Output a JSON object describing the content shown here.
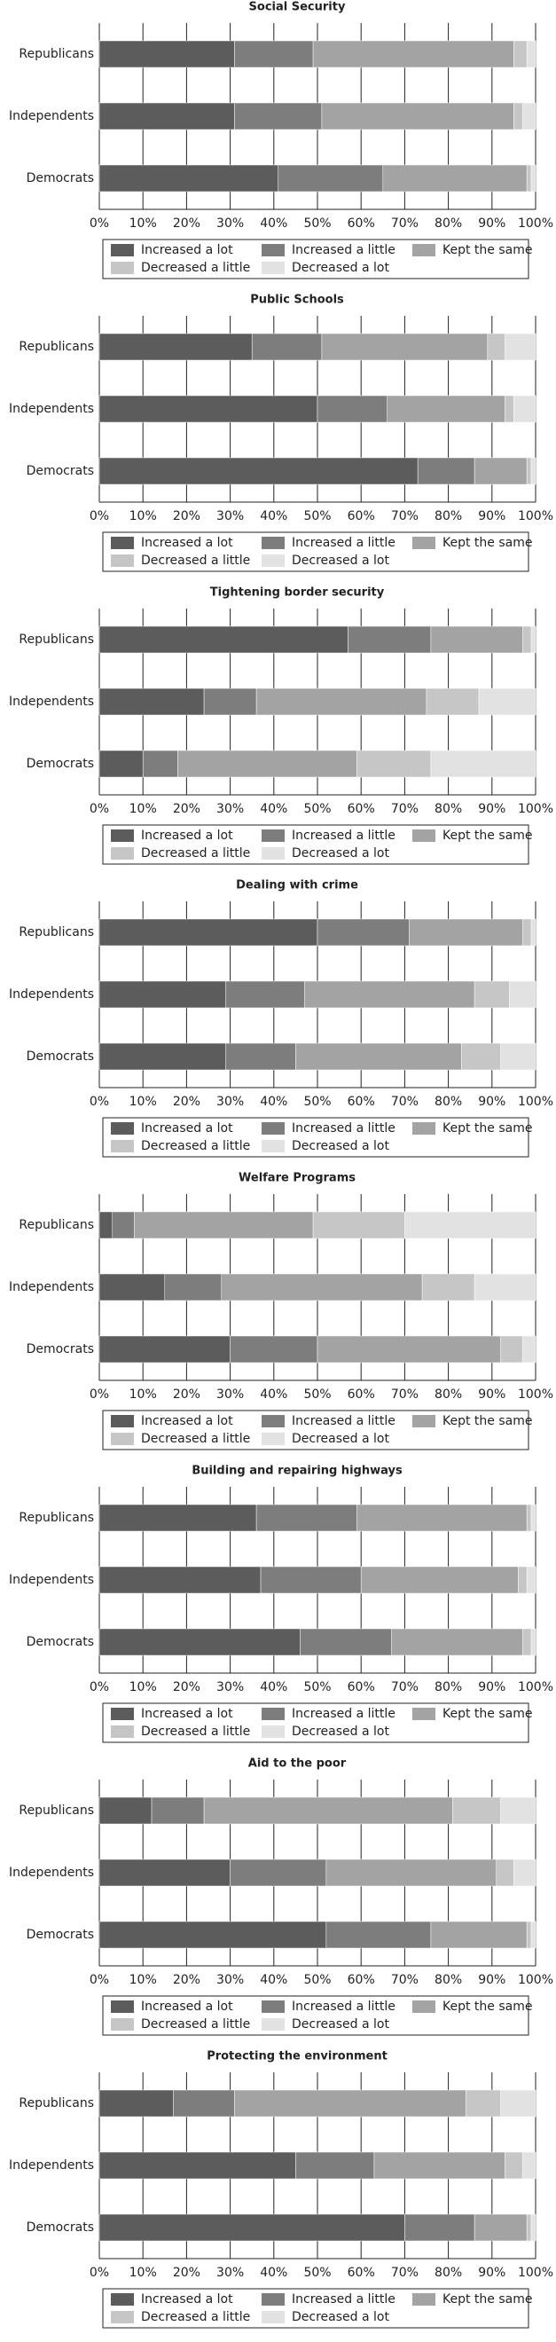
{
  "chart_data": [
    {
      "type": "bar",
      "orientation": "horizontal",
      "stacked": true,
      "title": "Social Security",
      "categories": [
        "Republicans",
        "Independents",
        "Democrats"
      ],
      "xlim": [
        0,
        100
      ],
      "xticks": [
        {
          "value": 0,
          "label": "0%"
        },
        {
          "value": 10,
          "label": "10%"
        },
        {
          "value": 20,
          "label": "20%"
        },
        {
          "value": 30,
          "label": "30%"
        },
        {
          "value": 40,
          "label": "40%"
        },
        {
          "value": 50,
          "label": "50%"
        },
        {
          "value": 60,
          "label": "60%"
        },
        {
          "value": 70,
          "label": "70%"
        },
        {
          "value": 80,
          "label": "80%"
        },
        {
          "value": 90,
          "label": "90%"
        },
        {
          "value": 100,
          "label": "100%"
        }
      ],
      "grid": true,
      "series": [
        {
          "name": "Increased a lot",
          "color": "#5c5c5c",
          "values": [
            31,
            31,
            41
          ]
        },
        {
          "name": "Increased a little",
          "color": "#7d7d7d",
          "values": [
            18,
            20,
            24
          ]
        },
        {
          "name": "Kept the same",
          "color": "#a3a3a3",
          "values": [
            46,
            44,
            33
          ]
        },
        {
          "name": "Decreased a little",
          "color": "#c6c6c6",
          "values": [
            3,
            2,
            1
          ]
        },
        {
          "name": "Decreased a lot",
          "color": "#e2e2e2",
          "values": [
            2,
            3,
            1
          ]
        }
      ]
    },
    {
      "type": "bar",
      "orientation": "horizontal",
      "stacked": true,
      "title": "Public Schools",
      "categories": [
        "Republicans",
        "Independents",
        "Democrats"
      ],
      "xlim": [
        0,
        100
      ],
      "xticks": [
        {
          "value": 0,
          "label": "0%"
        },
        {
          "value": 10,
          "label": "10%"
        },
        {
          "value": 20,
          "label": "20%"
        },
        {
          "value": 30,
          "label": "30%"
        },
        {
          "value": 40,
          "label": "40%"
        },
        {
          "value": 50,
          "label": "50%"
        },
        {
          "value": 60,
          "label": "60%"
        },
        {
          "value": 70,
          "label": "70%"
        },
        {
          "value": 80,
          "label": "80%"
        },
        {
          "value": 90,
          "label": "90%"
        },
        {
          "value": 100,
          "label": "100%"
        }
      ],
      "grid": true,
      "series": [
        {
          "name": "Increased a lot",
          "color": "#5c5c5c",
          "values": [
            35,
            50,
            73
          ]
        },
        {
          "name": "Increased a little",
          "color": "#7d7d7d",
          "values": [
            16,
            16,
            13
          ]
        },
        {
          "name": "Kept the same",
          "color": "#a3a3a3",
          "values": [
            38,
            27,
            12
          ]
        },
        {
          "name": "Decreased a little",
          "color": "#c6c6c6",
          "values": [
            4,
            2,
            1
          ]
        },
        {
          "name": "Decreased a lot",
          "color": "#e2e2e2",
          "values": [
            7,
            5,
            1
          ]
        }
      ]
    },
    {
      "type": "bar",
      "orientation": "horizontal",
      "stacked": true,
      "title": "Tightening border security",
      "categories": [
        "Republicans",
        "Independents",
        "Democrats"
      ],
      "xlim": [
        0,
        100
      ],
      "xticks": [
        {
          "value": 0,
          "label": "0%"
        },
        {
          "value": 10,
          "label": "10%"
        },
        {
          "value": 20,
          "label": "20%"
        },
        {
          "value": 30,
          "label": "30%"
        },
        {
          "value": 40,
          "label": "40%"
        },
        {
          "value": 50,
          "label": "50%"
        },
        {
          "value": 60,
          "label": "60%"
        },
        {
          "value": 70,
          "label": "70%"
        },
        {
          "value": 80,
          "label": "80%"
        },
        {
          "value": 90,
          "label": "90%"
        },
        {
          "value": 100,
          "label": "100%"
        }
      ],
      "grid": true,
      "series": [
        {
          "name": "Increased a lot",
          "color": "#5c5c5c",
          "values": [
            57,
            24,
            10
          ]
        },
        {
          "name": "Increased a little",
          "color": "#7d7d7d",
          "values": [
            19,
            12,
            8
          ]
        },
        {
          "name": "Kept the same",
          "color": "#a3a3a3",
          "values": [
            21,
            39,
            41
          ]
        },
        {
          "name": "Decreased a little",
          "color": "#c6c6c6",
          "values": [
            2,
            12,
            17
          ]
        },
        {
          "name": "Decreased a lot",
          "color": "#e2e2e2",
          "values": [
            1,
            13,
            24
          ]
        }
      ]
    },
    {
      "type": "bar",
      "orientation": "horizontal",
      "stacked": true,
      "title": "Dealing with crime",
      "categories": [
        "Republicans",
        "Independents",
        "Democrats"
      ],
      "xlim": [
        0,
        100
      ],
      "xticks": [
        {
          "value": 0,
          "label": "0%"
        },
        {
          "value": 10,
          "label": "10%"
        },
        {
          "value": 20,
          "label": "20%"
        },
        {
          "value": 30,
          "label": "30%"
        },
        {
          "value": 40,
          "label": "40%"
        },
        {
          "value": 50,
          "label": "50%"
        },
        {
          "value": 60,
          "label": "60%"
        },
        {
          "value": 70,
          "label": "70%"
        },
        {
          "value": 80,
          "label": "80%"
        },
        {
          "value": 90,
          "label": "90%"
        },
        {
          "value": 100,
          "label": "100%"
        }
      ],
      "grid": true,
      "series": [
        {
          "name": "Increased a lot",
          "color": "#5c5c5c",
          "values": [
            50,
            29,
            29
          ]
        },
        {
          "name": "Increased a little",
          "color": "#7d7d7d",
          "values": [
            21,
            18,
            16
          ]
        },
        {
          "name": "Kept the same",
          "color": "#a3a3a3",
          "values": [
            26,
            39,
            38
          ]
        },
        {
          "name": "Decreased a little",
          "color": "#c6c6c6",
          "values": [
            2,
            8,
            9
          ]
        },
        {
          "name": "Decreased a lot",
          "color": "#e2e2e2",
          "values": [
            1,
            6,
            8
          ]
        }
      ]
    },
    {
      "type": "bar",
      "orientation": "horizontal",
      "stacked": true,
      "title": "Welfare Programs",
      "categories": [
        "Republicans",
        "Independents",
        "Democrats"
      ],
      "xlim": [
        0,
        100
      ],
      "xticks": [
        {
          "value": 0,
          "label": "0%"
        },
        {
          "value": 10,
          "label": "10%"
        },
        {
          "value": 20,
          "label": "20%"
        },
        {
          "value": 30,
          "label": "30%"
        },
        {
          "value": 40,
          "label": "40%"
        },
        {
          "value": 50,
          "label": "50%"
        },
        {
          "value": 60,
          "label": "60%"
        },
        {
          "value": 70,
          "label": "70%"
        },
        {
          "value": 80,
          "label": "80%"
        },
        {
          "value": 90,
          "label": "90%"
        },
        {
          "value": 100,
          "label": "100%"
        }
      ],
      "grid": true,
      "series": [
        {
          "name": "Increased a lot",
          "color": "#5c5c5c",
          "values": [
            3,
            15,
            30
          ]
        },
        {
          "name": "Increased a little",
          "color": "#7d7d7d",
          "values": [
            5,
            13,
            20
          ]
        },
        {
          "name": "Kept the same",
          "color": "#a3a3a3",
          "values": [
            41,
            46,
            42
          ]
        },
        {
          "name": "Decreased a little",
          "color": "#c6c6c6",
          "values": [
            21,
            12,
            5
          ]
        },
        {
          "name": "Decreased a lot",
          "color": "#e2e2e2",
          "values": [
            30,
            14,
            3
          ]
        }
      ]
    },
    {
      "type": "bar",
      "orientation": "horizontal",
      "stacked": true,
      "title": "Building and repairing highways",
      "categories": [
        "Republicans",
        "Independents",
        "Democrats"
      ],
      "xlim": [
        0,
        100
      ],
      "xticks": [
        {
          "value": 0,
          "label": "0%"
        },
        {
          "value": 10,
          "label": "10%"
        },
        {
          "value": 20,
          "label": "20%"
        },
        {
          "value": 30,
          "label": "30%"
        },
        {
          "value": 40,
          "label": "40%"
        },
        {
          "value": 50,
          "label": "50%"
        },
        {
          "value": 60,
          "label": "60%"
        },
        {
          "value": 70,
          "label": "70%"
        },
        {
          "value": 80,
          "label": "80%"
        },
        {
          "value": 90,
          "label": "90%"
        },
        {
          "value": 100,
          "label": "100%"
        }
      ],
      "grid": true,
      "series": [
        {
          "name": "Increased a lot",
          "color": "#5c5c5c",
          "values": [
            36,
            37,
            46
          ]
        },
        {
          "name": "Increased a little",
          "color": "#7d7d7d",
          "values": [
            23,
            23,
            21
          ]
        },
        {
          "name": "Kept the same",
          "color": "#a3a3a3",
          "values": [
            39,
            36,
            30
          ]
        },
        {
          "name": "Decreased a little",
          "color": "#c6c6c6",
          "values": [
            1,
            2,
            2
          ]
        },
        {
          "name": "Decreased a lot",
          "color": "#e2e2e2",
          "values": [
            1,
            2,
            1
          ]
        }
      ]
    },
    {
      "type": "bar",
      "orientation": "horizontal",
      "stacked": true,
      "title": "Aid to the poor",
      "categories": [
        "Republicans",
        "Independents",
        "Democrats"
      ],
      "xlim": [
        0,
        100
      ],
      "xticks": [
        {
          "value": 0,
          "label": "0%"
        },
        {
          "value": 10,
          "label": "10%"
        },
        {
          "value": 20,
          "label": "20%"
        },
        {
          "value": 30,
          "label": "30%"
        },
        {
          "value": 40,
          "label": "40%"
        },
        {
          "value": 50,
          "label": "50%"
        },
        {
          "value": 60,
          "label": "60%"
        },
        {
          "value": 70,
          "label": "70%"
        },
        {
          "value": 80,
          "label": "80%"
        },
        {
          "value": 90,
          "label": "90%"
        },
        {
          "value": 100,
          "label": "100%"
        }
      ],
      "grid": true,
      "series": [
        {
          "name": "Increased a lot",
          "color": "#5c5c5c",
          "values": [
            12,
            30,
            52
          ]
        },
        {
          "name": "Increased a little",
          "color": "#7d7d7d",
          "values": [
            12,
            22,
            24
          ]
        },
        {
          "name": "Kept the same",
          "color": "#a3a3a3",
          "values": [
            57,
            39,
            22
          ]
        },
        {
          "name": "Decreased a little",
          "color": "#c6c6c6",
          "values": [
            11,
            4,
            1
          ]
        },
        {
          "name": "Decreased a lot",
          "color": "#e2e2e2",
          "values": [
            8,
            5,
            1
          ]
        }
      ]
    },
    {
      "type": "bar",
      "orientation": "horizontal",
      "stacked": true,
      "title": "Protecting the environment",
      "categories": [
        "Republicans",
        "Independents",
        "Democrats"
      ],
      "xlim": [
        0,
        100
      ],
      "xticks": [
        {
          "value": 0,
          "label": "0%"
        },
        {
          "value": 10,
          "label": "10%"
        },
        {
          "value": 20,
          "label": "20%"
        },
        {
          "value": 30,
          "label": "30%"
        },
        {
          "value": 40,
          "label": "40%"
        },
        {
          "value": 50,
          "label": "50%"
        },
        {
          "value": 60,
          "label": "60%"
        },
        {
          "value": 70,
          "label": "70%"
        },
        {
          "value": 80,
          "label": "80%"
        },
        {
          "value": 90,
          "label": "90%"
        },
        {
          "value": 100,
          "label": "100%"
        }
      ],
      "grid": true,
      "series": [
        {
          "name": "Increased a lot",
          "color": "#5c5c5c",
          "values": [
            17,
            45,
            70
          ]
        },
        {
          "name": "Increased a little",
          "color": "#7d7d7d",
          "values": [
            14,
            18,
            16
          ]
        },
        {
          "name": "Kept the same",
          "color": "#a3a3a3",
          "values": [
            53,
            30,
            12
          ]
        },
        {
          "name": "Decreased a little",
          "color": "#c6c6c6",
          "values": [
            8,
            4,
            1
          ]
        },
        {
          "name": "Decreased a lot",
          "color": "#e2e2e2",
          "values": [
            8,
            3,
            1
          ]
        }
      ]
    }
  ]
}
